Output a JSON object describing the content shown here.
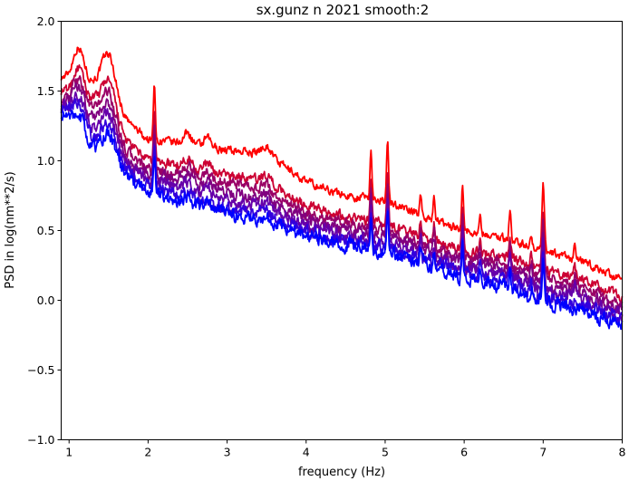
{
  "chart_data": {
    "type": "line",
    "title": "sx.gunz n 2021 smooth:2",
    "xlabel": "frequency (Hz)",
    "ylabel": "PSD in log(nm**2/s)",
    "xlim": [
      0.9,
      8.0
    ],
    "ylim": [
      -1.0,
      2.0
    ],
    "xticks": [
      1,
      2,
      3,
      4,
      5,
      6,
      7,
      8
    ],
    "xtick_labels": [
      "1",
      "2",
      "3",
      "4",
      "5",
      "6",
      "7",
      "8"
    ],
    "yticks": [
      -1.0,
      -0.5,
      0.0,
      0.5,
      1.0,
      1.5,
      2.0
    ],
    "ytick_labels": [
      "−1.0",
      "−0.5",
      "0.0",
      "0.5",
      "1.0",
      "1.5",
      "2.0"
    ],
    "grid": false,
    "legend": "none",
    "peaks": [
      {
        "x": 1.12,
        "h": 0.24,
        "w": 0.07
      },
      {
        "x": 1.5,
        "h": 0.34,
        "w": 0.09
      },
      {
        "x": 2.08,
        "h": 0.42,
        "w": 0.012
      },
      {
        "x": 2.5,
        "h": 0.08,
        "w": 0.05
      },
      {
        "x": 2.75,
        "h": 0.06,
        "w": 0.04
      },
      {
        "x": 3.5,
        "h": 0.06,
        "w": 0.06
      },
      {
        "x": 4.82,
        "h": 0.35,
        "w": 0.012
      },
      {
        "x": 5.03,
        "h": 0.42,
        "w": 0.012
      },
      {
        "x": 5.45,
        "h": 0.15,
        "w": 0.012
      },
      {
        "x": 5.62,
        "h": 0.15,
        "w": 0.012
      },
      {
        "x": 5.98,
        "h": 0.35,
        "w": 0.012
      },
      {
        "x": 6.2,
        "h": 0.12,
        "w": 0.012
      },
      {
        "x": 6.58,
        "h": 0.2,
        "w": 0.012
      },
      {
        "x": 6.85,
        "h": 0.1,
        "w": 0.012
      },
      {
        "x": 7.0,
        "h": 0.5,
        "w": 0.015
      },
      {
        "x": 7.4,
        "h": 0.1,
        "w": 0.012
      }
    ],
    "series": [
      {
        "color": "#ff0000",
        "base": [
          [
            0.9,
            1.6
          ],
          [
            1.3,
            1.55
          ],
          [
            1.7,
            1.3
          ],
          [
            2.0,
            1.15
          ],
          [
            2.5,
            1.12
          ],
          [
            3.0,
            1.08
          ],
          [
            3.5,
            1.05
          ],
          [
            4.0,
            0.85
          ],
          [
            4.5,
            0.75
          ],
          [
            5.0,
            0.72
          ],
          [
            5.5,
            0.6
          ],
          [
            6.0,
            0.5
          ],
          [
            6.5,
            0.45
          ],
          [
            7.0,
            0.35
          ],
          [
            7.5,
            0.28
          ],
          [
            8.0,
            0.14
          ]
        ],
        "peak_scale": 1.0,
        "jitter": 0.025
      },
      {
        "color": "#cc0033",
        "base": [
          [
            0.9,
            1.5
          ],
          [
            1.3,
            1.42
          ],
          [
            1.7,
            1.15
          ],
          [
            2.0,
            1.0
          ],
          [
            2.5,
            0.96
          ],
          [
            3.0,
            0.9
          ],
          [
            3.5,
            0.85
          ],
          [
            4.0,
            0.68
          ],
          [
            4.5,
            0.6
          ],
          [
            5.0,
            0.55
          ],
          [
            5.5,
            0.45
          ],
          [
            6.0,
            0.36
          ],
          [
            6.5,
            0.32
          ],
          [
            7.0,
            0.22
          ],
          [
            7.5,
            0.15
          ],
          [
            8.0,
            0.02
          ]
        ],
        "peak_scale": 0.85,
        "jitter": 0.03
      },
      {
        "color": "#990066",
        "base": [
          [
            0.9,
            1.45
          ],
          [
            1.3,
            1.36
          ],
          [
            1.7,
            1.08
          ],
          [
            2.0,
            0.93
          ],
          [
            2.5,
            0.9
          ],
          [
            3.0,
            0.84
          ],
          [
            3.5,
            0.78
          ],
          [
            4.0,
            0.62
          ],
          [
            4.5,
            0.55
          ],
          [
            5.0,
            0.5
          ],
          [
            5.5,
            0.4
          ],
          [
            6.0,
            0.31
          ],
          [
            6.5,
            0.27
          ],
          [
            7.0,
            0.17
          ],
          [
            7.5,
            0.1
          ],
          [
            8.0,
            -0.03
          ]
        ],
        "peak_scale": 0.8,
        "jitter": 0.032
      },
      {
        "color": "#800080",
        "base": [
          [
            0.9,
            1.42
          ],
          [
            1.3,
            1.3
          ],
          [
            1.7,
            1.02
          ],
          [
            2.0,
            0.9
          ],
          [
            2.5,
            0.86
          ],
          [
            3.0,
            0.78
          ],
          [
            3.5,
            0.72
          ],
          [
            4.0,
            0.58
          ],
          [
            4.5,
            0.5
          ],
          [
            5.0,
            0.46
          ],
          [
            5.5,
            0.36
          ],
          [
            6.0,
            0.27
          ],
          [
            6.5,
            0.23
          ],
          [
            7.0,
            0.12
          ],
          [
            7.5,
            0.05
          ],
          [
            8.0,
            -0.07
          ]
        ],
        "peak_scale": 0.75,
        "jitter": 0.035
      },
      {
        "color": "#6600aa",
        "base": [
          [
            0.9,
            1.4
          ],
          [
            1.3,
            1.22
          ],
          [
            1.7,
            0.98
          ],
          [
            2.0,
            0.86
          ],
          [
            2.5,
            0.8
          ],
          [
            3.0,
            0.72
          ],
          [
            3.5,
            0.66
          ],
          [
            4.0,
            0.54
          ],
          [
            4.5,
            0.46
          ],
          [
            5.0,
            0.42
          ],
          [
            5.5,
            0.33
          ],
          [
            6.0,
            0.23
          ],
          [
            6.5,
            0.19
          ],
          [
            7.0,
            0.08
          ],
          [
            7.5,
            0.01
          ],
          [
            8.0,
            -0.11
          ]
        ],
        "peak_scale": 0.7,
        "jitter": 0.037
      },
      {
        "color": "#3300dd",
        "base": [
          [
            0.9,
            1.38
          ],
          [
            1.3,
            1.15
          ],
          [
            1.7,
            0.93
          ],
          [
            2.0,
            0.82
          ],
          [
            2.5,
            0.74
          ],
          [
            3.0,
            0.66
          ],
          [
            3.5,
            0.6
          ],
          [
            4.0,
            0.5
          ],
          [
            4.5,
            0.42
          ],
          [
            5.0,
            0.38
          ],
          [
            5.5,
            0.29
          ],
          [
            6.0,
            0.19
          ],
          [
            6.5,
            0.14
          ],
          [
            7.0,
            0.03
          ],
          [
            7.5,
            -0.04
          ],
          [
            8.0,
            -0.15
          ]
        ],
        "peak_scale": 0.65,
        "jitter": 0.04
      },
      {
        "color": "#0000ff",
        "base": [
          [
            0.9,
            1.35
          ],
          [
            1.3,
            1.08
          ],
          [
            1.7,
            0.9
          ],
          [
            2.0,
            0.78
          ],
          [
            2.5,
            0.7
          ],
          [
            3.0,
            0.62
          ],
          [
            3.5,
            0.56
          ],
          [
            4.0,
            0.47
          ],
          [
            4.5,
            0.39
          ],
          [
            5.0,
            0.35
          ],
          [
            5.5,
            0.26
          ],
          [
            6.0,
            0.16
          ],
          [
            6.5,
            0.1
          ],
          [
            7.0,
            -0.01
          ],
          [
            7.5,
            -0.08
          ],
          [
            8.0,
            -0.19
          ]
        ],
        "peak_scale": 0.6,
        "jitter": 0.042
      }
    ]
  }
}
